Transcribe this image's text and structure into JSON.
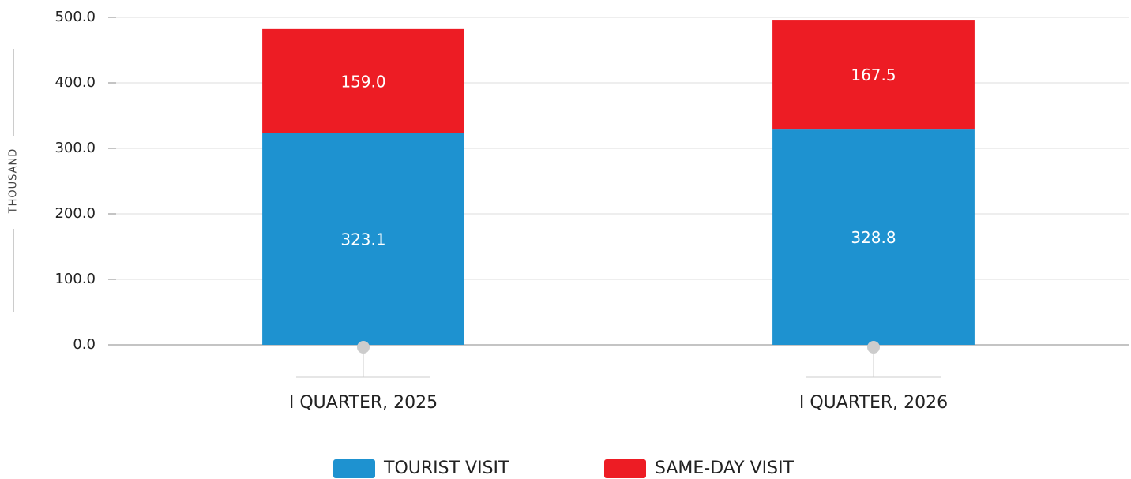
{
  "chart_data": {
    "type": "stacked_bar",
    "y_label": "THOUSAND",
    "categories": [
      "I QUARTER, 2025",
      "I QUARTER, 2026"
    ],
    "series": [
      {
        "name": "TOURIST VISIT",
        "color": "#1e92d0",
        "values": [
          323.1,
          328.8
        ]
      },
      {
        "name": "SAME-DAY VISIT",
        "color": "#ed1c24",
        "values": [
          159.0,
          167.5
        ],
        "value_labels": [
          "159.0",
          "167.5"
        ]
      }
    ],
    "ylim": [
      0,
      500
    ],
    "yticks": [
      {
        "value": 0,
        "label": "0.0"
      },
      {
        "value": 100,
        "label": "100.0"
      },
      {
        "value": 200,
        "label": "200.0"
      },
      {
        "value": 300,
        "label": "300.0"
      },
      {
        "value": 400,
        "label": "400.0"
      },
      {
        "value": 500,
        "label": "500.0"
      }
    ],
    "grid": true,
    "legend": "bottom"
  }
}
